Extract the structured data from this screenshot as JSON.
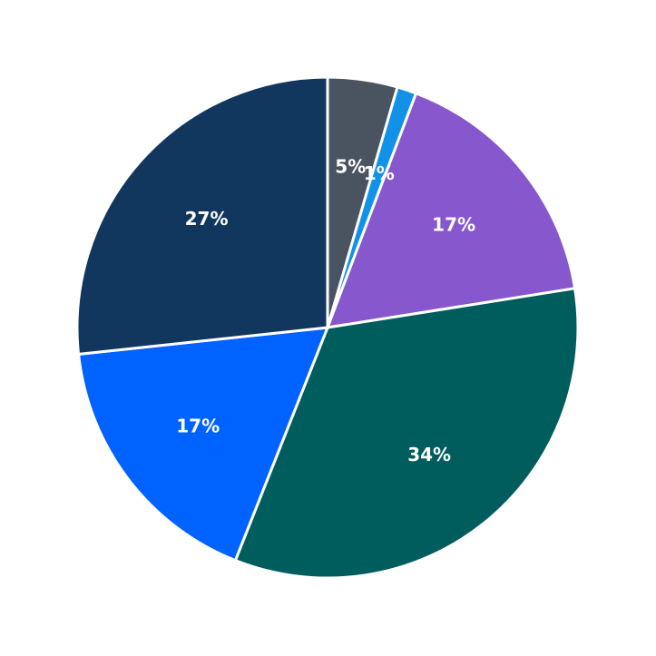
{
  "chart_data": {
    "type": "pie",
    "start_angle": "top",
    "direction": "clockwise",
    "slices": [
      {
        "value": 4.5,
        "label": "5%",
        "color": "#4a5360"
      },
      {
        "value": 1.25,
        "label": "1%",
        "color": "#1192e8"
      },
      {
        "value": 16.75,
        "label": "17%",
        "color": "#8757cd"
      },
      {
        "value": 33.5,
        "label": "34%",
        "color": "#005d5d"
      },
      {
        "value": 17.3,
        "label": "17%",
        "color": "#0062ff"
      },
      {
        "value": 26.7,
        "label": "27%",
        "color": "#12375f"
      }
    ],
    "slice_border_color": "#ffffff"
  }
}
